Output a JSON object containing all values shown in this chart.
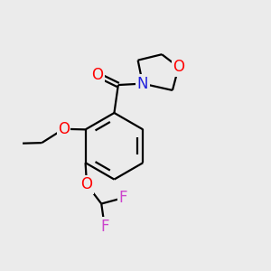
{
  "background_color": "#ebebeb",
  "atom_colors": {
    "O": "#ff0000",
    "N": "#2222dd",
    "F": "#cc44cc",
    "C": "#000000"
  },
  "bond_lw": 1.6,
  "font_size": 12
}
